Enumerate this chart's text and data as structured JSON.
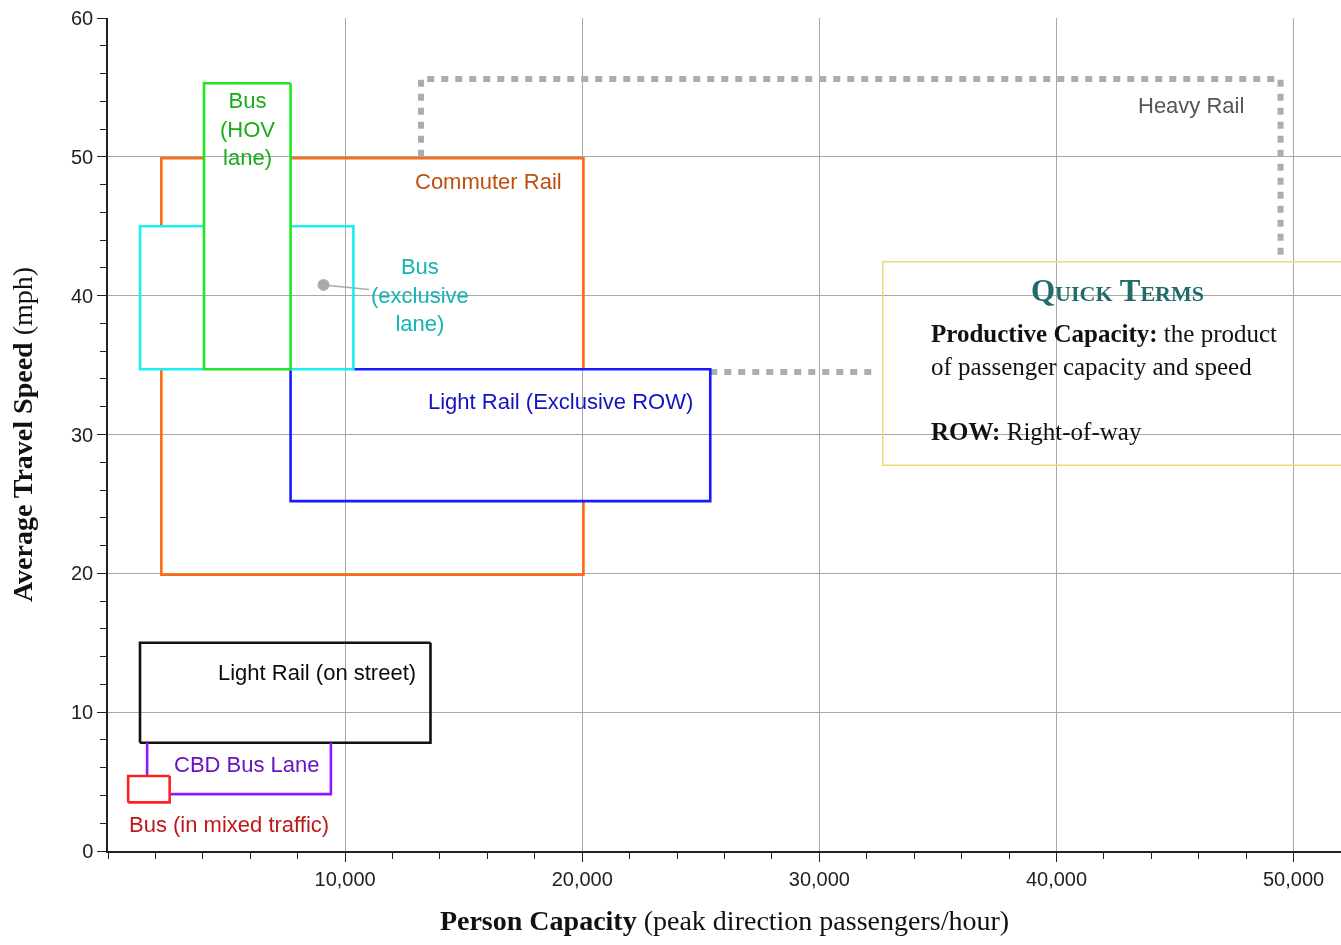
{
  "chart_data": {
    "type": "line",
    "marker": "none",
    "line_style": "solid",
    "grid": true,
    "xlabel": "Person Capacity (peak direction passengers/hour)",
    "ylabel": "Average Travel Speed (mph)",
    "annotations": [
      "Quick Terms",
      "Productive Capacity:",
      "the product of passenger capacity and speed",
      "ROW:",
      "Right-of-way"
    ],
    "xlim": [
      0,
      52000
    ],
    "ylim": [
      0,
      60
    ],
    "xticks": [
      {
        "value": 0,
        "label": null
      },
      {
        "value": 2000,
        "label": null
      },
      {
        "value": 4000,
        "label": null
      },
      {
        "value": 6000,
        "label": null
      },
      {
        "value": 8000,
        "label": null
      },
      {
        "value": 10000,
        "label": "10,000"
      },
      {
        "value": 12000,
        "label": null
      },
      {
        "value": 14000,
        "label": null
      },
      {
        "value": 16000,
        "label": null
      },
      {
        "value": 18000,
        "label": null
      },
      {
        "value": 20000,
        "label": "20,000"
      },
      {
        "value": 22000,
        "label": null
      },
      {
        "value": 24000,
        "label": null
      },
      {
        "value": 26000,
        "label": null
      },
      {
        "value": 28000,
        "label": null
      },
      {
        "value": 30000,
        "label": "30,000"
      },
      {
        "value": 32000,
        "label": null
      },
      {
        "value": 34000,
        "label": null
      },
      {
        "value": 36000,
        "label": null
      },
      {
        "value": 38000,
        "label": null
      },
      {
        "value": 40000,
        "label": "40,000"
      },
      {
        "value": 42000,
        "label": null
      },
      {
        "value": 44000,
        "label": null
      },
      {
        "value": 46000,
        "label": null
      },
      {
        "value": 48000,
        "label": null
      },
      {
        "value": 50000,
        "label": "50,000"
      }
    ],
    "yticks": [
      0,
      {
        "value": 2,
        "label": null
      },
      {
        "value": 4,
        "label": null
      },
      {
        "value": 6,
        "label": null
      },
      {
        "value": 8,
        "label": null
      },
      10,
      {
        "value": 12,
        "label": null
      },
      {
        "value": 14,
        "label": null
      },
      {
        "value": 16,
        "label": null
      },
      {
        "value": 18,
        "label": null
      },
      20,
      {
        "value": 22,
        "label": null
      },
      {
        "value": 24,
        "label": null
      },
      {
        "value": 26,
        "label": null
      },
      {
        "value": 28,
        "label": null
      },
      30,
      {
        "value": 32,
        "label": null
      },
      {
        "value": 34,
        "label": null
      },
      {
        "value": 36,
        "label": null
      },
      {
        "value": 38,
        "label": null
      },
      40,
      {
        "value": 42,
        "label": null
      },
      {
        "value": 44,
        "label": null
      },
      {
        "value": 46,
        "label": null
      },
      {
        "value": 48,
        "label": null
      },
      50,
      {
        "value": 52,
        "label": null
      },
      {
        "value": 54,
        "label": null
      },
      {
        "value": 56,
        "label": null
      },
      {
        "value": 58,
        "label": null
      },
      60
    ],
    "series": [
      {
        "name": "Heavy Rail",
        "color": "#a9aeae",
        "line_style": "dotted",
        "x": [
          13200,
          13200,
          49450,
          49450,
          null,
          25400,
          32300
        ],
        "values": [
          50,
          55.6,
          55.6,
          42.6,
          null,
          34.5,
          34.5
        ]
      },
      {
        "name": "Commuter Rail",
        "color": "#ff6a13",
        "x": [
          2250,
          2250,
          4050,
          null,
          7700,
          20050,
          20050,
          null,
          20050,
          20050,
          2250,
          2250
        ],
        "values": [
          45,
          49.9,
          49.9,
          null,
          49.9,
          49.9,
          34.7,
          null,
          25.2,
          19.9,
          19.9,
          34.7
        ]
      },
      {
        "name": "Light Rail (Exclusive ROW)",
        "color": "#1a1aff",
        "x": [
          10350,
          25400,
          25400,
          7700,
          7700
        ],
        "values": [
          34.7,
          34.7,
          25.2,
          25.2,
          34.7
        ]
      },
      {
        "name": "Bus (exclusive lane)",
        "color": "#19f0f0",
        "x": [
          4050,
          1350,
          1350,
          4050,
          null,
          7700,
          10350,
          10350,
          7700
        ],
        "values": [
          45,
          45,
          34.7,
          34.7,
          null,
          34.7,
          34.7,
          45,
          45
        ]
      },
      {
        "name": "Bus (HOV lane)",
        "color": "#22e622",
        "x": [
          4050,
          7700,
          7700,
          null,
          7700,
          4050,
          4050
        ],
        "values": [
          34.7,
          34.7,
          55.3,
          null,
          55.3,
          55.3,
          34.7
        ]
      },
      {
        "name": "Light Rail (on street)",
        "color": "#111111",
        "x": [
          1350,
          13600,
          13600,
          null,
          13600,
          1350,
          1350
        ],
        "values": [
          7.8,
          7.8,
          15,
          null,
          15,
          15,
          7.8
        ]
      },
      {
        "name": "CBD Bus Lane",
        "color": "#8b1aff",
        "x": [
          1650,
          1650,
          null,
          9400,
          9400,
          2600
        ],
        "values": [
          5.4,
          7.8,
          null,
          7.8,
          4.1,
          4.1
        ]
      },
      {
        "name": "Bus (in mixed traffic)",
        "color": "#ff2020",
        "x": [
          850,
          2600,
          2600,
          null,
          2600,
          850,
          850
        ],
        "values": [
          3.5,
          3.5,
          5.4,
          null,
          5.4,
          5.4,
          3.5
        ]
      }
    ]
  }
}
